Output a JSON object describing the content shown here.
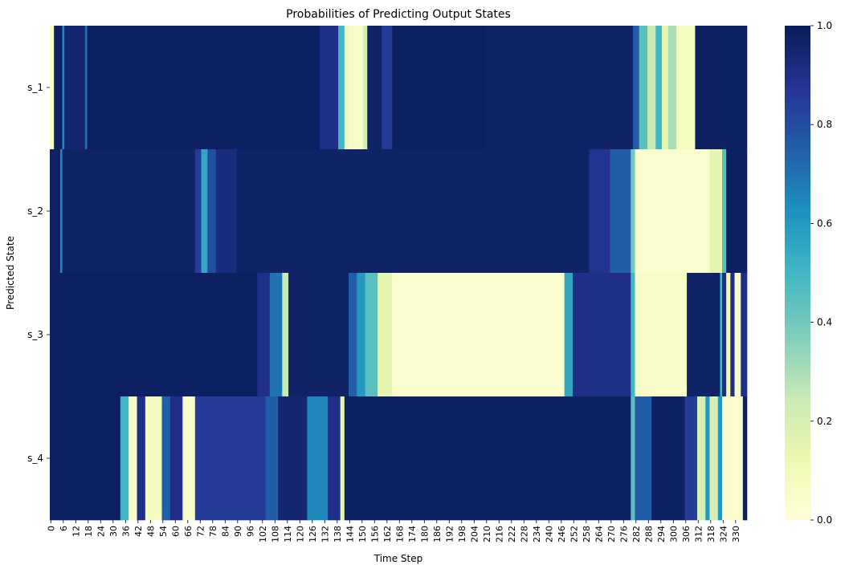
{
  "chart_data": {
    "type": "heatmap",
    "title": "Probabilities of Predicting Output States",
    "xlabel": "Time Step",
    "ylabel": "Predicted State",
    "rows": [
      "s_1",
      "s_2",
      "s_3",
      "s_4"
    ],
    "x_range": [
      0,
      335
    ],
    "x_tick_step": 6,
    "colorbar": {
      "colormap": "YlGnBu",
      "vmin": 0.0,
      "vmax": 1.0,
      "ticks": [
        "0.0",
        "0.2",
        "0.4",
        "0.6",
        "0.8",
        "1.0"
      ]
    },
    "row_segments": [
      [
        [
          0,
          2,
          0.05
        ],
        [
          2,
          6,
          0.98
        ],
        [
          6,
          7,
          0.65
        ],
        [
          7,
          17,
          0.95
        ],
        [
          17,
          18,
          0.7
        ],
        [
          18,
          130,
          0.98
        ],
        [
          130,
          139,
          0.9
        ],
        [
          139,
          142,
          0.5
        ],
        [
          142,
          144,
          0.1
        ],
        [
          144,
          151,
          0.05
        ],
        [
          151,
          153,
          0.2
        ],
        [
          153,
          160,
          0.97
        ],
        [
          160,
          165,
          0.85
        ],
        [
          165,
          210,
          0.98
        ],
        [
          210,
          281,
          0.97
        ],
        [
          281,
          284,
          0.75
        ],
        [
          284,
          288,
          0.45
        ],
        [
          288,
          292,
          0.25
        ],
        [
          292,
          295,
          0.5
        ],
        [
          295,
          298,
          0.15
        ],
        [
          298,
          302,
          0.3
        ],
        [
          302,
          311,
          0.08
        ],
        [
          311,
          336,
          0.98
        ]
      ],
      [
        [
          0,
          5,
          0.98
        ],
        [
          5,
          6,
          0.65
        ],
        [
          6,
          70,
          0.97
        ],
        [
          70,
          73,
          0.85
        ],
        [
          73,
          76,
          0.55
        ],
        [
          76,
          80,
          0.8
        ],
        [
          80,
          90,
          0.92
        ],
        [
          90,
          260,
          0.97
        ],
        [
          260,
          270,
          0.88
        ],
        [
          270,
          280,
          0.75
        ],
        [
          280,
          282,
          0.4
        ],
        [
          282,
          318,
          0.03
        ],
        [
          318,
          324,
          0.15
        ],
        [
          324,
          326,
          0.45
        ],
        [
          326,
          336,
          0.98
        ]
      ],
      [
        [
          0,
          100,
          0.98
        ],
        [
          100,
          106,
          0.9
        ],
        [
          106,
          112,
          0.7
        ],
        [
          112,
          115,
          0.25
        ],
        [
          115,
          144,
          0.97
        ],
        [
          144,
          148,
          0.75
        ],
        [
          148,
          152,
          0.6
        ],
        [
          152,
          158,
          0.45
        ],
        [
          158,
          165,
          0.15
        ],
        [
          165,
          248,
          0.03
        ],
        [
          248,
          252,
          0.55
        ],
        [
          252,
          280,
          0.9
        ],
        [
          280,
          282,
          0.5
        ],
        [
          282,
          307,
          0.05
        ],
        [
          307,
          323,
          0.97
        ],
        [
          323,
          324,
          0.5
        ],
        [
          324,
          326,
          0.9
        ],
        [
          326,
          328,
          0.1
        ],
        [
          328,
          330,
          0.9
        ],
        [
          330,
          333,
          0.05
        ],
        [
          333,
          336,
          0.9
        ]
      ],
      [
        [
          0,
          34,
          0.98
        ],
        [
          34,
          38,
          0.5
        ],
        [
          38,
          42,
          0.05
        ],
        [
          42,
          46,
          0.9
        ],
        [
          46,
          54,
          0.08
        ],
        [
          54,
          58,
          0.75
        ],
        [
          58,
          64,
          0.9
        ],
        [
          64,
          70,
          0.05
        ],
        [
          70,
          104,
          0.85
        ],
        [
          104,
          110,
          0.75
        ],
        [
          110,
          124,
          0.95
        ],
        [
          124,
          134,
          0.65
        ],
        [
          134,
          140,
          0.9
        ],
        [
          140,
          142,
          0.15
        ],
        [
          142,
          280,
          0.98
        ],
        [
          280,
          282,
          0.45
        ],
        [
          282,
          290,
          0.75
        ],
        [
          290,
          306,
          0.98
        ],
        [
          306,
          312,
          0.85
        ],
        [
          312,
          316,
          0.2
        ],
        [
          316,
          318,
          0.6
        ],
        [
          318,
          322,
          0.2
        ],
        [
          322,
          324,
          0.6
        ],
        [
          324,
          334,
          0.03
        ],
        [
          334,
          336,
          0.98
        ]
      ]
    ]
  }
}
